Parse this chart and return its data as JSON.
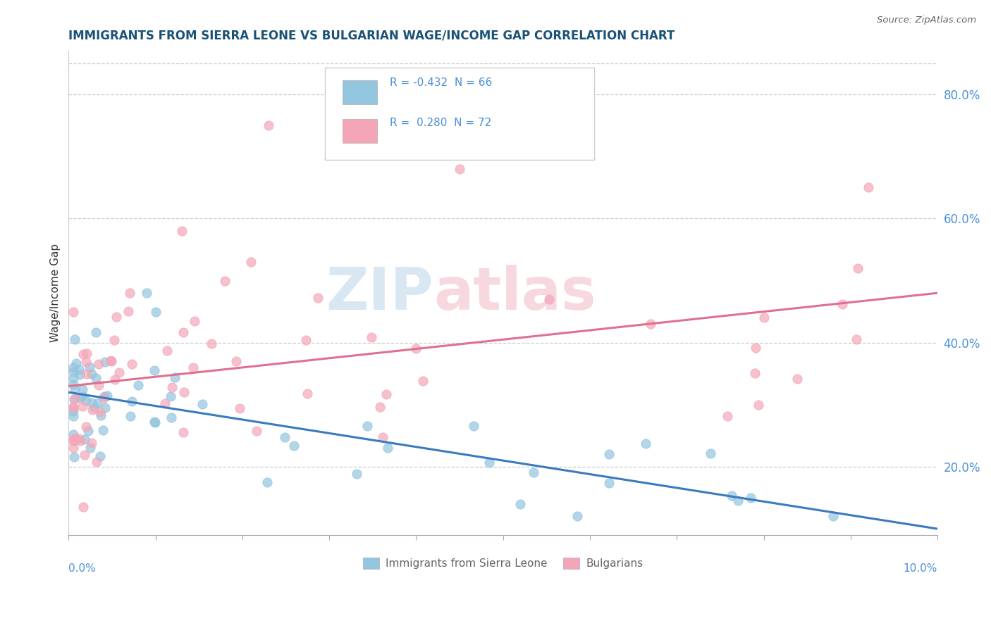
{
  "title": "IMMIGRANTS FROM SIERRA LEONE VS BULGARIAN WAGE/INCOME GAP CORRELATION CHART",
  "source": "Source: ZipAtlas.com",
  "ylabel": "Wage/Income Gap",
  "xlim": [
    0.0,
    10.0
  ],
  "ylim": [
    9.0,
    87.0
  ],
  "y_ticks": [
    20.0,
    40.0,
    60.0,
    80.0
  ],
  "blue_R": -0.432,
  "blue_N": 66,
  "pink_R": 0.28,
  "pink_N": 72,
  "blue_color": "#92c5de",
  "pink_color": "#f4a6b8",
  "blue_line_color": "#3a7abf",
  "pink_line_color": "#e07090",
  "legend_label_blue": "Immigrants from Sierra Leone",
  "legend_label_pink": "Bulgarians",
  "title_color": "#1a5276",
  "axis_color": "#4a90d9",
  "blue_trend": [
    32.0,
    10.0
  ],
  "pink_trend": [
    33.0,
    48.0
  ]
}
